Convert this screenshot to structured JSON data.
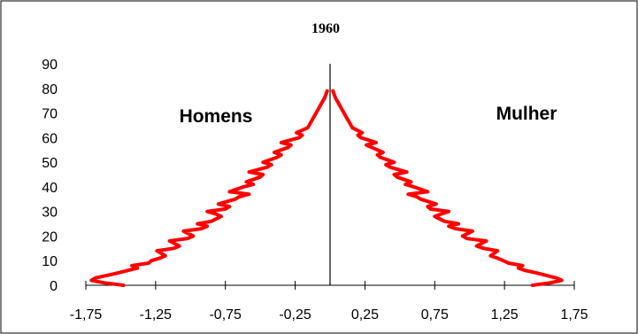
{
  "chart_data": {
    "type": "line",
    "title": "1960",
    "xlabel": "",
    "ylabel": "",
    "xlim": [
      -1.75,
      1.75
    ],
    "ylim": [
      0,
      90
    ],
    "x_ticks": [
      -1.75,
      -1.25,
      -0.75,
      -0.25,
      0.25,
      0.75,
      1.25,
      1.75
    ],
    "x_tick_labels": [
      "-1,75",
      "-1,25",
      "-0,75",
      "-0,25",
      "0,25",
      "0,75",
      "1,25",
      "1,75"
    ],
    "y_ticks": [
      0,
      10,
      20,
      30,
      40,
      50,
      60,
      70,
      80,
      90
    ],
    "y_tick_labels": [
      "0",
      "10",
      "20",
      "30",
      "40",
      "50",
      "60",
      "70",
      "80",
      "90"
    ],
    "annotations": [
      "Homens",
      "Mulher"
    ],
    "line_color": "#ff0000",
    "series": [
      {
        "name": "Homens",
        "x": [
          -1.48,
          -1.62,
          -1.71,
          -1.68,
          -1.6,
          -1.52,
          -1.45,
          -1.38,
          -1.42,
          -1.3,
          -1.28,
          -1.22,
          -1.18,
          -1.24,
          -1.12,
          -1.08,
          -1.15,
          -1.02,
          -0.98,
          -1.05,
          -0.92,
          -0.88,
          -0.95,
          -0.85,
          -0.78,
          -0.82,
          -0.88,
          -0.75,
          -0.72,
          -0.8,
          -0.68,
          -0.65,
          -0.58,
          -0.72,
          -0.62,
          -0.55,
          -0.6,
          -0.5,
          -0.48,
          -0.58,
          -0.45,
          -0.42,
          -0.48,
          -0.38,
          -0.35,
          -0.4,
          -0.3,
          -0.28,
          -0.35,
          -0.22,
          -0.2,
          -0.24,
          -0.16,
          -0.14,
          -0.12,
          -0.1,
          -0.08,
          -0.06,
          -0.04,
          -0.02
        ],
        "y": [
          0,
          1,
          2,
          3,
          4,
          5,
          6,
          7,
          8,
          9,
          10,
          11,
          12,
          14,
          15,
          16,
          18,
          19,
          20,
          22,
          23,
          24,
          25,
          26,
          28,
          29,
          30,
          31,
          32,
          33,
          35,
          36,
          37,
          38,
          40,
          41,
          42,
          44,
          45,
          46,
          48,
          49,
          50,
          52,
          53,
          54,
          56,
          57,
          58,
          60,
          61,
          62,
          64,
          66,
          68,
          70,
          72,
          74,
          76,
          79
        ]
      },
      {
        "name": "Mulher",
        "x": [
          1.45,
          1.58,
          1.66,
          1.62,
          1.55,
          1.48,
          1.4,
          1.35,
          1.38,
          1.28,
          1.24,
          1.2,
          1.15,
          1.2,
          1.1,
          1.05,
          1.12,
          0.98,
          0.95,
          1.02,
          0.9,
          0.85,
          0.92,
          0.82,
          0.75,
          0.8,
          0.85,
          0.72,
          0.7,
          0.76,
          0.65,
          0.62,
          0.56,
          0.7,
          0.6,
          0.54,
          0.58,
          0.48,
          0.46,
          0.55,
          0.43,
          0.4,
          0.46,
          0.36,
          0.34,
          0.38,
          0.3,
          0.26,
          0.33,
          0.22,
          0.2,
          0.23,
          0.16,
          0.14,
          0.12,
          0.1,
          0.08,
          0.06,
          0.04,
          0.02
        ],
        "y": [
          0,
          1,
          2,
          3,
          4,
          5,
          6,
          7,
          8,
          9,
          10,
          11,
          12,
          14,
          15,
          16,
          18,
          19,
          20,
          22,
          23,
          24,
          25,
          26,
          28,
          29,
          30,
          31,
          32,
          33,
          35,
          36,
          37,
          38,
          40,
          41,
          42,
          44,
          45,
          46,
          48,
          49,
          50,
          52,
          53,
          54,
          56,
          57,
          58,
          60,
          61,
          62,
          64,
          66,
          68,
          70,
          72,
          74,
          76,
          79
        ]
      }
    ],
    "grid": false,
    "legend": "none"
  }
}
